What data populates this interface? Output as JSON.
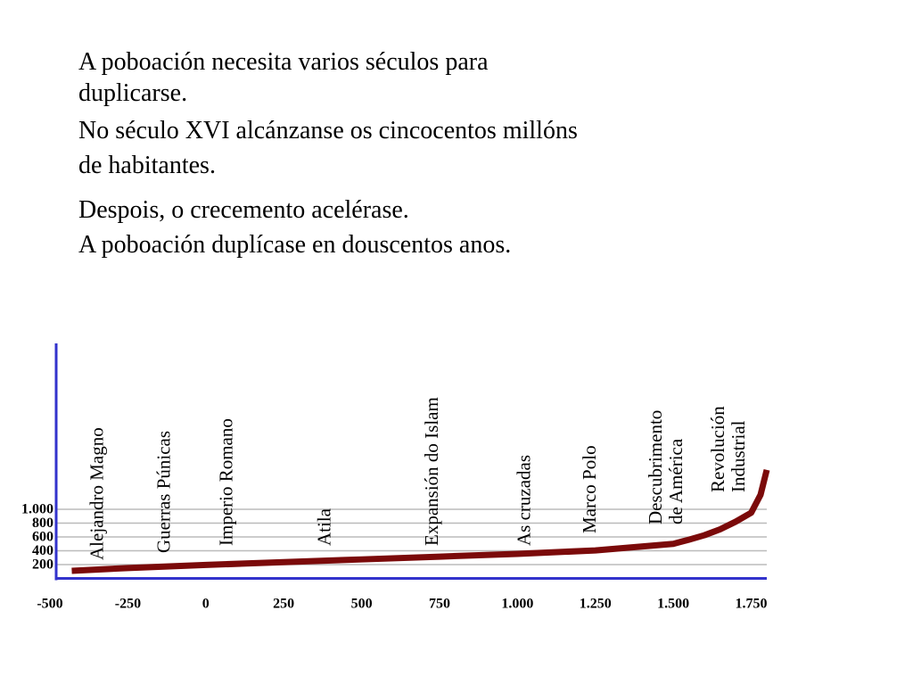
{
  "text_lines": [
    "A poboación necesita varios séculos para",
    "duplicarse.",
    "No século XVI alcánzanse os cincocentos millóns",
    "de habitantes.",
    "Despois, o crecemento acelérase.",
    "A poboación duplícase en douscentos anos."
  ],
  "chart_data": {
    "type": "line",
    "x": [
      -430,
      -250,
      0,
      250,
      500,
      750,
      1000,
      1250,
      1500,
      1550,
      1600,
      1650,
      1700,
      1750,
      1780,
      1800
    ],
    "series": [
      {
        "color": "#7b0a0a",
        "values": [
          110,
          150,
          195,
          235,
          275,
          315,
          355,
          405,
          500,
          560,
          625,
          710,
          820,
          950,
          1210,
          1570
        ]
      }
    ],
    "xlim": [
      -480,
      1800
    ],
    "ylim": [
      0,
      3400
    ],
    "xticks": [
      -500,
      -250,
      0,
      250,
      500,
      750,
      {
        "value": 1000,
        "label": "1.000"
      },
      {
        "value": 1250,
        "label": "1.250"
      },
      {
        "value": 1500,
        "label": "1.500"
      },
      {
        "value": 1750,
        "label": "1.750"
      }
    ],
    "yticks": [
      200,
      400,
      600,
      800,
      {
        "value": 1000,
        "label": "1.000"
      }
    ],
    "grid": true,
    "axis_color": "#3333cc",
    "annotations": [
      {
        "x": -350,
        "lines": [
          "Alejandro Magno"
        ]
      },
      {
        "x": -135,
        "lines": [
          "Guerras Púnicas"
        ]
      },
      {
        "x": 65,
        "lines": [
          "Imperio Romano"
        ]
      },
      {
        "x": 380,
        "lines": [
          "Atila"
        ]
      },
      {
        "x": 725,
        "lines": [
          "Expansión do Islam"
        ]
      },
      {
        "x": 1020,
        "lines": [
          "As cruzadas"
        ]
      },
      {
        "x": 1230,
        "lines": [
          "Marco Polo"
        ]
      },
      {
        "x": 1475,
        "lines": [
          "Descubrimento",
          "de América"
        ]
      },
      {
        "x": 1675,
        "lines": [
          "Revolución",
          "Industrial"
        ]
      }
    ]
  }
}
